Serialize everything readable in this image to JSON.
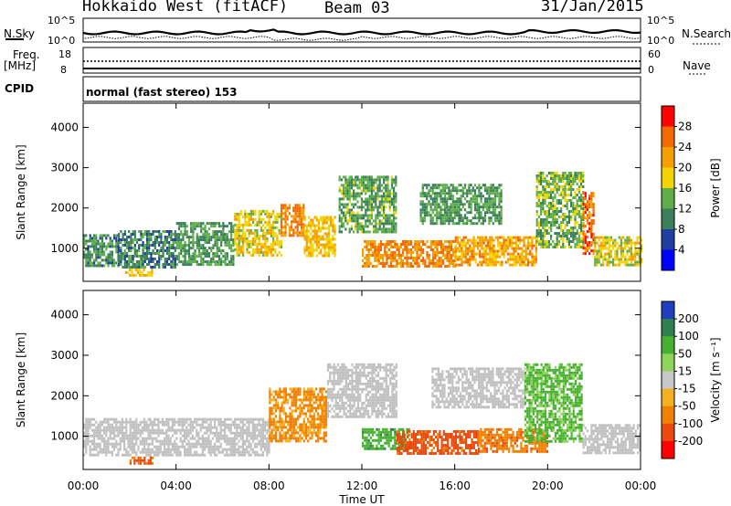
{
  "header": {
    "station": "Hokkaido West (fitACF)",
    "beam": "Beam 03",
    "date": "31/Jan/2015"
  },
  "aux_panels": {
    "nsky_label": "N.Sky",
    "nsearch_label": "N.Search",
    "noise_ticks": [
      "10^5",
      "10^0"
    ],
    "freq_label": "Freq.",
    "freq_unit": "[MHz]",
    "freq_ticks": [
      "18",
      "8"
    ],
    "nave_label": "Nave",
    "nave_ticks": [
      "60",
      "0"
    ],
    "cpid_label": "CPID",
    "cpid_value": "normal (fast stereo) 153"
  },
  "colors": {
    "power_scale": [
      "#0000ff",
      "#1f3fa0",
      "#3a7f5a",
      "#5fae49",
      "#f2d500",
      "#f4a100",
      "#f26a00",
      "#ff0000"
    ],
    "velocity_scale": [
      "#1f3fbf",
      "#2f7f4f",
      "#48b030",
      "#8fd45a",
      "#c8c8c8",
      "#f4b020",
      "#f08000",
      "#e84a10",
      "#ff0000"
    ],
    "groundscatter": "#c0c0c0"
  },
  "chart_data": [
    {
      "type": "heatmap",
      "title": "",
      "quantity": "Power",
      "xlabel": "",
      "ylabel": "Slant Range [km]",
      "x_ticks": [
        "00:00",
        "04:00",
        "08:00",
        "12:00",
        "16:00",
        "20:00",
        "00:00"
      ],
      "y_ticks": [
        "1000",
        "2000",
        "3000",
        "4000"
      ],
      "ylim": [
        180,
        4600
      ],
      "colorbar_label": "Power [dB]",
      "colorbar_ticks": [
        "4",
        "8",
        "12",
        "16",
        "20",
        "24",
        "28"
      ],
      "colorbar_range": [
        0,
        32
      ],
      "echo_regions": [
        {
          "t_start": 0.0,
          "t_end": 1.5,
          "range_min": 550,
          "range_max": 1350,
          "power_db": 11
        },
        {
          "t_start": 1.5,
          "t_end": 4.0,
          "range_min": 500,
          "range_max": 1450,
          "power_db": 10
        },
        {
          "t_start": 1.8,
          "t_end": 3.0,
          "range_min": 300,
          "range_max": 500,
          "power_db": 20
        },
        {
          "t_start": 4.0,
          "t_end": 6.5,
          "range_min": 600,
          "range_max": 1650,
          "power_db": 12
        },
        {
          "t_start": 6.5,
          "t_end": 8.5,
          "range_min": 800,
          "range_max": 1950,
          "power_db": 18
        },
        {
          "t_start": 8.5,
          "t_end": 9.5,
          "range_min": 1300,
          "range_max": 2100,
          "power_db": 24
        },
        {
          "t_start": 9.5,
          "t_end": 10.8,
          "range_min": 800,
          "range_max": 1800,
          "power_db": 20
        },
        {
          "t_start": 11.0,
          "t_end": 13.5,
          "range_min": 1400,
          "range_max": 2800,
          "power_db": 13
        },
        {
          "t_start": 12.0,
          "t_end": 16.0,
          "range_min": 550,
          "range_max": 1200,
          "power_db": 24
        },
        {
          "t_start": 14.5,
          "t_end": 18.0,
          "range_min": 1600,
          "range_max": 2600,
          "power_db": 12
        },
        {
          "t_start": 16.0,
          "t_end": 19.5,
          "range_min": 600,
          "range_max": 1300,
          "power_db": 22
        },
        {
          "t_start": 19.5,
          "t_end": 21.5,
          "range_min": 1000,
          "range_max": 2900,
          "power_db": 14
        },
        {
          "t_start": 21.5,
          "t_end": 22.0,
          "range_min": 900,
          "range_max": 2400,
          "power_db": 26
        },
        {
          "t_start": 22.0,
          "t_end": 24.0,
          "range_min": 600,
          "range_max": 1300,
          "power_db": 18
        }
      ]
    },
    {
      "type": "heatmap",
      "title": "",
      "quantity": "Velocity",
      "xlabel": "Time UT",
      "ylabel": "Slant Range [km]",
      "x_ticks": [
        "00:00",
        "04:00",
        "08:00",
        "12:00",
        "16:00",
        "20:00",
        "00:00"
      ],
      "y_ticks": [
        "1000",
        "2000",
        "3000",
        "4000"
      ],
      "ylim": [
        180,
        4600
      ],
      "colorbar_label": "Velocity [m s⁻¹]",
      "colorbar_ticks": [
        "200",
        "100",
        "50",
        "15",
        "-15",
        "-50",
        "-100",
        "-200"
      ],
      "colorbar_range": [
        -250,
        250
      ],
      "echo_regions": [
        {
          "t_start": 0.0,
          "t_end": 8.0,
          "range_min": 550,
          "range_max": 1450,
          "velocity": 0,
          "groundscatter": true
        },
        {
          "t_start": 2.0,
          "t_end": 3.0,
          "range_min": 300,
          "range_max": 500,
          "velocity": -80
        },
        {
          "t_start": 8.0,
          "t_end": 10.5,
          "range_min": 900,
          "range_max": 2200,
          "velocity": -40
        },
        {
          "t_start": 10.5,
          "t_end": 13.5,
          "range_min": 1500,
          "range_max": 2800,
          "velocity": 0,
          "groundscatter": true
        },
        {
          "t_start": 12.0,
          "t_end": 14.0,
          "range_min": 700,
          "range_max": 1200,
          "velocity": 60
        },
        {
          "t_start": 13.5,
          "t_end": 17.0,
          "range_min": 600,
          "range_max": 1150,
          "velocity": -90
        },
        {
          "t_start": 15.0,
          "t_end": 19.0,
          "range_min": 1700,
          "range_max": 2700,
          "velocity": 0,
          "groundscatter": true
        },
        {
          "t_start": 17.0,
          "t_end": 20.0,
          "range_min": 600,
          "range_max": 1200,
          "velocity": -60
        },
        {
          "t_start": 19.0,
          "t_end": 21.5,
          "range_min": 900,
          "range_max": 2800,
          "velocity": 40
        },
        {
          "t_start": 21.5,
          "t_end": 24.0,
          "range_min": 600,
          "range_max": 1300,
          "velocity": 0,
          "groundscatter": true
        }
      ]
    }
  ]
}
